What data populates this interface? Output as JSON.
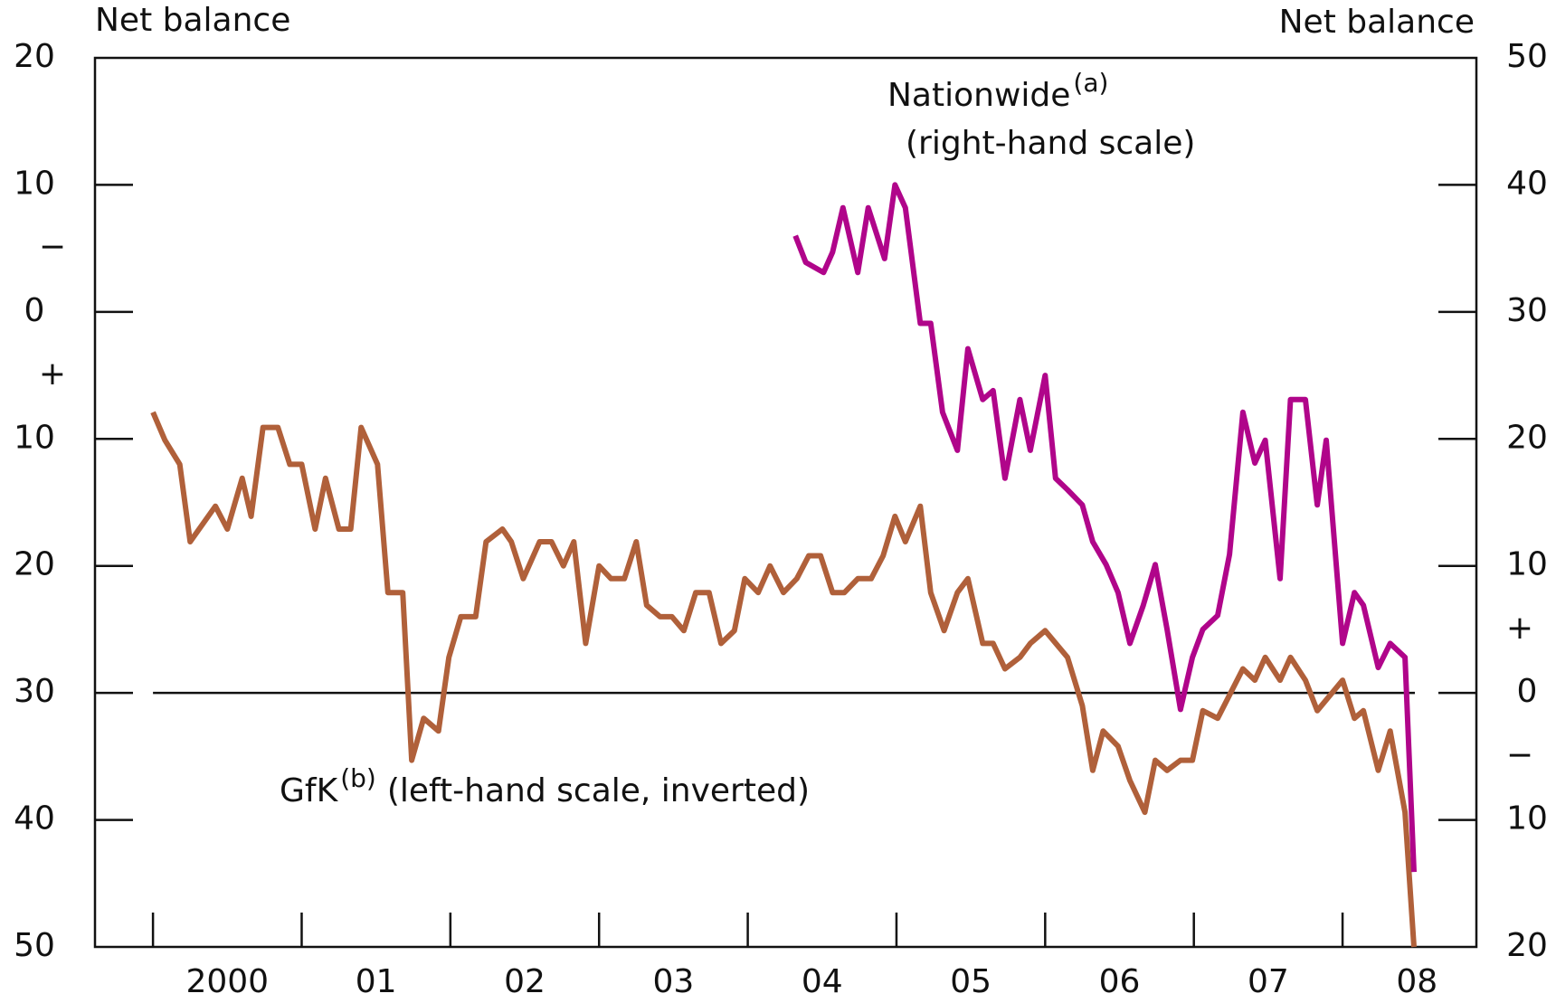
{
  "chart_data": {
    "type": "line",
    "y_label": "Net balance",
    "y2_label": "Net balance",
    "xlim": [
      1999.61,
      2008.9
    ],
    "xticks": [
      {
        "value": 2000,
        "label": "2000"
      },
      {
        "value": 2001,
        "label": "01"
      },
      {
        "value": 2002,
        "label": "02"
      },
      {
        "value": 2003,
        "label": "03"
      },
      {
        "value": 2004,
        "label": "04"
      },
      {
        "value": 2005,
        "label": "05"
      },
      {
        "value": 2006,
        "label": "06"
      },
      {
        "value": 2007,
        "label": "07"
      },
      {
        "value": 2008,
        "label": "08"
      }
    ],
    "ylim": [
      -20,
      50
    ],
    "y_inverted": true,
    "yticks": [
      {
        "value": -20,
        "label": "20"
      },
      {
        "value": -10,
        "label": "10"
      },
      0,
      10,
      20,
      30,
      40,
      50
    ],
    "y_signs": [
      "−",
      "+"
    ],
    "y2lim": [
      -20,
      50
    ],
    "y2ticks": [
      {
        "value": -20,
        "label": "20"
      },
      {
        "value": -10,
        "label": "10"
      },
      0,
      10,
      20,
      30,
      40,
      50
    ],
    "y2_signs": [
      "+",
      "−"
    ],
    "zero_line": true,
    "series": [
      {
        "name": "GfK",
        "note": "(b)",
        "annotation": "(left-hand scale, inverted)",
        "color": "#b0603a",
        "axis": "y",
        "x": [
          2000.0,
          2000.08,
          2000.18,
          2000.25,
          2000.42,
          2000.5,
          2000.6,
          2000.66,
          2000.74,
          2000.84,
          2000.92,
          2001.0,
          2001.09,
          2001.16,
          2001.25,
          2001.33,
          2001.4,
          2001.51,
          2001.58,
          2001.68,
          2001.74,
          2001.82,
          2001.92,
          2001.99,
          2002.07,
          2002.17,
          2002.24,
          2002.35,
          2002.41,
          2002.49,
          2002.6,
          2002.68,
          2002.76,
          2002.83,
          2002.91,
          2003.0,
          2003.08,
          2003.17,
          2003.25,
          2003.32,
          2003.41,
          2003.49,
          2003.57,
          2003.65,
          2003.74,
          2003.82,
          2003.91,
          2003.98,
          2004.07,
          2004.15,
          2004.24,
          2004.33,
          2004.41,
          2004.49,
          2004.57,
          2004.65,
          2004.74,
          2004.83,
          2004.91,
          2004.99,
          2005.06,
          2005.16,
          2005.23,
          2005.32,
          2005.41,
          2005.48,
          2005.58,
          2005.65,
          2005.73,
          2005.83,
          2005.9,
          2006.0,
          2006.15,
          2006.25,
          2006.32,
          2006.39,
          2006.49,
          2006.57,
          2006.67,
          2006.74,
          2006.82,
          2006.91,
          2006.99,
          2007.06,
          2007.16,
          2007.33,
          2007.41,
          2007.48,
          2007.58,
          2007.65,
          2007.75,
          2007.83,
          2008.0,
          2008.08,
          2008.14,
          2008.24,
          2008.32,
          2008.42,
          2008.48
        ],
        "values": [
          7.9,
          10.1,
          12.0,
          18.1,
          15.3,
          17.1,
          13.1,
          16.1,
          9.1,
          9.1,
          12.0,
          12.0,
          17.1,
          13.1,
          17.1,
          17.1,
          9.1,
          12.0,
          22.1,
          22.1,
          35.3,
          32.0,
          33.0,
          27.2,
          24.0,
          24.0,
          18.1,
          17.1,
          18.1,
          21.0,
          18.1,
          18.1,
          20.0,
          18.1,
          26.1,
          20.0,
          21.0,
          21.0,
          18.1,
          23.1,
          24.0,
          24.0,
          25.1,
          22.1,
          22.1,
          26.1,
          25.1,
          21.0,
          22.1,
          20.0,
          22.1,
          21.0,
          19.2,
          19.2,
          22.1,
          22.1,
          21.0,
          21.0,
          19.2,
          16.1,
          18.1,
          15.3,
          22.1,
          25.1,
          22.1,
          21.0,
          26.1,
          26.1,
          28.1,
          27.2,
          26.1,
          25.1,
          27.2,
          31.0,
          36.1,
          33.0,
          34.2,
          36.9,
          39.4,
          35.3,
          36.1,
          35.3,
          35.3,
          31.4,
          32.0,
          28.1,
          29.0,
          27.2,
          29.0,
          27.2,
          29.0,
          31.4,
          29.0,
          32.0,
          31.4,
          36.1,
          33.0,
          39.4,
          50.0
        ]
      },
      {
        "name": "Nationwide",
        "note": "(a)",
        "annotation": "(right-hand scale)",
        "color": "#b0058a",
        "axis": "y2",
        "x": [
          2004.32,
          2004.39,
          2004.51,
          2004.57,
          2004.64,
          2004.74,
          2004.81,
          2004.92,
          2004.99,
          2005.06,
          2005.16,
          2005.23,
          2005.31,
          2005.41,
          2005.48,
          2005.58,
          2005.65,
          2005.73,
          2005.83,
          2005.9,
          2006.0,
          2006.07,
          2006.15,
          2006.25,
          2006.32,
          2006.41,
          2006.49,
          2006.57,
          2006.66,
          2006.74,
          2006.82,
          2006.91,
          2006.99,
          2007.06,
          2007.16,
          2007.24,
          2007.33,
          2007.41,
          2007.48,
          2007.58,
          2007.65,
          2007.75,
          2007.83,
          2007.89,
          2008.0,
          2008.08,
          2008.14,
          2008.24,
          2008.32,
          2008.42,
          2008.48
        ],
        "values": [
          36.0,
          33.9,
          33.1,
          34.7,
          38.2,
          33.1,
          38.2,
          34.2,
          40.0,
          38.2,
          29.1,
          29.1,
          22.1,
          19.1,
          27.1,
          23.1,
          23.8,
          16.9,
          23.1,
          19.1,
          25.0,
          16.9,
          16.0,
          14.8,
          11.9,
          10.1,
          7.9,
          3.9,
          6.9,
          10.1,
          5.0,
          -1.3,
          2.8,
          5.0,
          6.1,
          10.9,
          22.1,
          18.1,
          19.9,
          9.0,
          23.1,
          23.1,
          14.8,
          19.9,
          3.9,
          7.9,
          6.9,
          2.0,
          3.9,
          2.8,
          -14.1
        ]
      }
    ]
  }
}
